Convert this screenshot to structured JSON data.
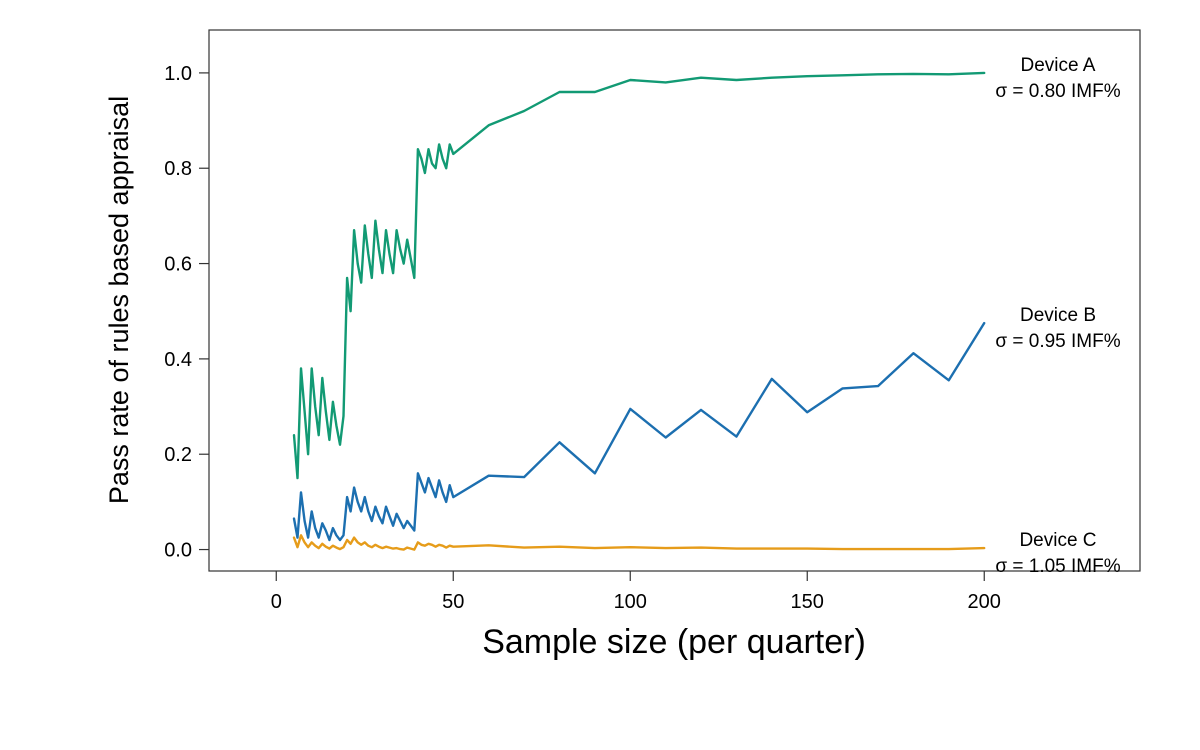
{
  "chart_data": {
    "type": "line",
    "title": "",
    "xlabel": "Sample size (per quarter)",
    "ylabel": "Pass rate of rules based appraisal",
    "xlim": [
      -19,
      244
    ],
    "ylim": [
      -0.045,
      1.09
    ],
    "xticks": [
      0,
      50,
      100,
      150,
      200
    ],
    "xtick_labels": [
      "0",
      "50",
      "100",
      "150",
      "200"
    ],
    "yticks": [
      0.0,
      0.2,
      0.4,
      0.6,
      0.8,
      1.0
    ],
    "ytick_labels": [
      "0.0",
      "0.2",
      "0.4",
      "0.6",
      "0.8",
      "1.0"
    ],
    "grid": false,
    "legend": "none (inline labels at right end of each line)",
    "series": [
      {
        "name": "Device A",
        "label_line1": "Device A",
        "label_line2": "σ = 0.80 IMF%",
        "color": "#129a74",
        "x": [
          5,
          6,
          7,
          8,
          9,
          10,
          11,
          12,
          13,
          14,
          15,
          16,
          17,
          18,
          19,
          20,
          21,
          22,
          23,
          24,
          25,
          26,
          27,
          28,
          29,
          30,
          31,
          32,
          33,
          34,
          35,
          36,
          37,
          38,
          39,
          40,
          41,
          42,
          43,
          44,
          45,
          46,
          47,
          48,
          49,
          50,
          60,
          70,
          80,
          90,
          100,
          110,
          120,
          130,
          140,
          150,
          160,
          170,
          180,
          190,
          200
        ],
        "y": [
          0.24,
          0.15,
          0.38,
          0.29,
          0.2,
          0.38,
          0.3,
          0.24,
          0.36,
          0.29,
          0.23,
          0.31,
          0.26,
          0.22,
          0.28,
          0.57,
          0.5,
          0.67,
          0.6,
          0.56,
          0.68,
          0.62,
          0.57,
          0.69,
          0.63,
          0.58,
          0.67,
          0.62,
          0.58,
          0.67,
          0.63,
          0.6,
          0.65,
          0.61,
          0.57,
          0.84,
          0.82,
          0.79,
          0.84,
          0.81,
          0.8,
          0.85,
          0.82,
          0.8,
          0.85,
          0.83,
          0.89,
          0.92,
          0.96,
          0.96,
          0.985,
          0.98,
          0.99,
          0.985,
          0.99,
          0.993,
          0.995,
          0.997,
          0.998,
          0.997,
          1.0
        ]
      },
      {
        "name": "Device B",
        "label_line1": "Device B",
        "label_line2": "σ = 0.95 IMF%",
        "color": "#1c6fb0",
        "x": [
          5,
          6,
          7,
          8,
          9,
          10,
          11,
          12,
          13,
          14,
          15,
          16,
          17,
          18,
          19,
          20,
          21,
          22,
          23,
          24,
          25,
          26,
          27,
          28,
          29,
          30,
          31,
          32,
          33,
          34,
          35,
          36,
          37,
          38,
          39,
          40,
          41,
          42,
          43,
          44,
          45,
          46,
          47,
          48,
          49,
          50,
          60,
          70,
          80,
          90,
          100,
          110,
          120,
          130,
          140,
          150,
          160,
          170,
          180,
          190,
          200
        ],
        "y": [
          0.065,
          0.025,
          0.12,
          0.06,
          0.025,
          0.08,
          0.045,
          0.025,
          0.055,
          0.04,
          0.02,
          0.045,
          0.03,
          0.02,
          0.03,
          0.11,
          0.08,
          0.13,
          0.1,
          0.08,
          0.11,
          0.08,
          0.06,
          0.09,
          0.07,
          0.055,
          0.09,
          0.07,
          0.05,
          0.075,
          0.06,
          0.045,
          0.06,
          0.05,
          0.04,
          0.16,
          0.14,
          0.12,
          0.15,
          0.13,
          0.11,
          0.145,
          0.12,
          0.1,
          0.135,
          0.11,
          0.155,
          0.152,
          0.225,
          0.16,
          0.295,
          0.235,
          0.293,
          0.237,
          0.358,
          0.288,
          0.338,
          0.343,
          0.412,
          0.355,
          0.475
        ]
      },
      {
        "name": "Device C",
        "label_line1": "Device C",
        "label_line2": "σ = 1.05 IMF%",
        "color": "#e69c1a",
        "x": [
          5,
          6,
          7,
          8,
          9,
          10,
          11,
          12,
          13,
          14,
          15,
          16,
          17,
          18,
          19,
          20,
          21,
          22,
          23,
          24,
          25,
          26,
          27,
          28,
          29,
          30,
          31,
          32,
          33,
          34,
          35,
          36,
          37,
          38,
          39,
          40,
          41,
          42,
          43,
          44,
          45,
          46,
          47,
          48,
          49,
          50,
          60,
          70,
          80,
          90,
          100,
          110,
          120,
          130,
          140,
          150,
          160,
          170,
          180,
          190,
          200
        ],
        "y": [
          0.025,
          0.005,
          0.03,
          0.015,
          0.005,
          0.015,
          0.008,
          0.003,
          0.012,
          0.006,
          0.002,
          0.008,
          0.004,
          0.001,
          0.005,
          0.02,
          0.012,
          0.025,
          0.015,
          0.01,
          0.015,
          0.008,
          0.005,
          0.01,
          0.006,
          0.003,
          0.006,
          0.004,
          0.002,
          0.003,
          0.001,
          0.0,
          0.004,
          0.002,
          0.0,
          0.015,
          0.01,
          0.008,
          0.012,
          0.01,
          0.006,
          0.01,
          0.008,
          0.004,
          0.008,
          0.006,
          0.009,
          0.004,
          0.006,
          0.003,
          0.005,
          0.003,
          0.004,
          0.002,
          0.002,
          0.002,
          0.001,
          0.001,
          0.001,
          0.001,
          0.003
        ]
      }
    ]
  }
}
